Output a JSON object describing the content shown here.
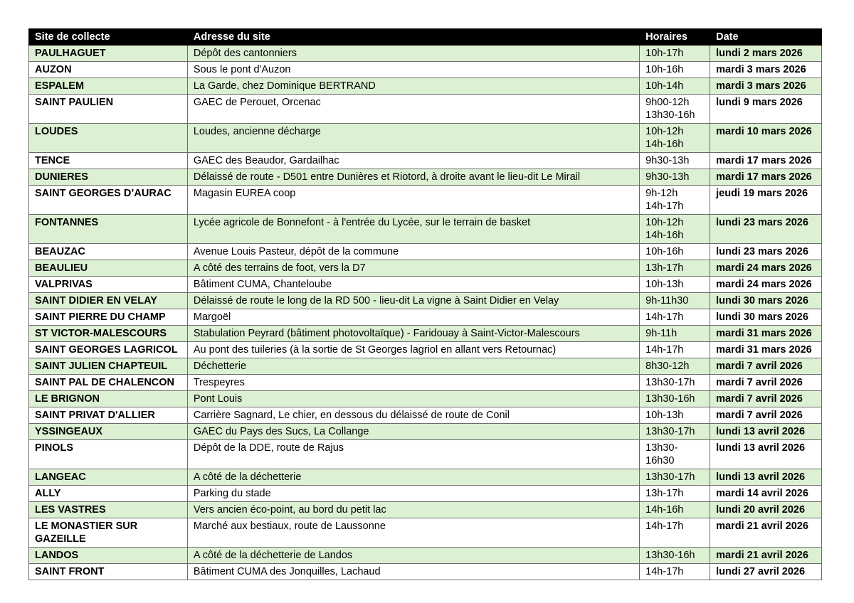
{
  "table": {
    "headers": [
      "Site de collecte",
      "Adresse du site",
      "Horaires",
      "Date"
    ],
    "row_highlight_color": "#dcf1d3",
    "header_color": "#000000",
    "rows": [
      {
        "site": "PAULHAGUET",
        "address": "Dépôt des cantonniers",
        "hours": [
          "10h-17h"
        ],
        "date": "lundi 2 mars 2026"
      },
      {
        "site": "AUZON",
        "address": "Sous le pont d'Auzon",
        "hours": [
          "10h-16h"
        ],
        "date": "mardi 3 mars 2026"
      },
      {
        "site": "ESPALEM",
        "address": "La Garde, chez Dominique BERTRAND",
        "hours": [
          "10h-14h"
        ],
        "date": "mardi 3 mars 2026"
      },
      {
        "site": "SAINT PAULIEN",
        "address": "GAEC de Perouet, Orcenac",
        "hours": [
          "9h00-12h",
          "13h30-16h"
        ],
        "date": "lundi 9 mars 2026"
      },
      {
        "site": "LOUDES",
        "address": "Loudes, ancienne décharge",
        "hours": [
          "10h-12h",
          "14h-16h"
        ],
        "date": "mardi 10 mars 2026"
      },
      {
        "site": "TENCE",
        "address": "GAEC des Beaudor, Gardailhac",
        "hours": [
          "9h30-13h"
        ],
        "date": "mardi 17 mars 2026"
      },
      {
        "site": "DUNIERES",
        "address": "Délaissé de route - D501 entre Dunières et Riotord, à droite avant le lieu-dit Le Mirail",
        "hours": [
          "9h30-13h"
        ],
        "date": "mardi 17 mars 2026"
      },
      {
        "site": "SAINT GEORGES D’AURAC",
        "address": "Magasin EUREA coop",
        "hours": [
          "9h-12h",
          "14h-17h"
        ],
        "date": "jeudi 19 mars 2026"
      },
      {
        "site": "FONTANNES",
        "address": "Lycée agricole de Bonnefont - à l'entrée du Lycée, sur le terrain de basket",
        "hours": [
          "10h-12h",
          "14h-16h"
        ],
        "date": "lundi 23 mars 2026"
      },
      {
        "site": "BEAUZAC",
        "address": "Avenue Louis Pasteur, dépôt de la commune",
        "hours": [
          "10h-16h"
        ],
        "date": "lundi 23 mars 2026"
      },
      {
        "site": "BEAULIEU",
        "address": "A côté des terrains de foot, vers la D7",
        "hours": [
          "13h-17h"
        ],
        "date": "mardi 24 mars 2026"
      },
      {
        "site": "VALPRIVAS",
        "address": "Bâtiment CUMA, Chanteloube",
        "hours": [
          "10h-13h"
        ],
        "date": "mardi 24 mars 2026"
      },
      {
        "site": "SAINT DIDIER EN VELAY",
        "address": "Délaissé de route le long de la RD 500 - lieu-dit La vigne à Saint Didier en Velay",
        "hours": [
          "9h-11h30"
        ],
        "date": "lundi 30 mars 2026"
      },
      {
        "site": "SAINT PIERRE DU CHAMP",
        "address": "Margoël",
        "hours": [
          "14h-17h"
        ],
        "date": "lundi 30 mars 2026"
      },
      {
        "site": "ST VICTOR-MALESCOURS",
        "address": "Stabulation Peyrard (bâtiment photovoltaïque) - Faridouay à Saint-Victor-Malescours",
        "hours": [
          "9h-11h"
        ],
        "date": "mardi 31 mars 2026"
      },
      {
        "site": "SAINT GEORGES LAGRICOL",
        "address": "Au pont des tuileries (à la sortie de St Georges lagriol en allant vers Retournac)",
        "hours": [
          "14h-17h"
        ],
        "date": "mardi 31 mars 2026"
      },
      {
        "site": "SAINT JULIEN CHAPTEUIL",
        "address": "Déchetterie",
        "hours": [
          "8h30-12h"
        ],
        "date": "mardi 7 avril 2026"
      },
      {
        "site": "SAINT PAL DE CHALENCON",
        "address": "Trespeyres",
        "hours": [
          "13h30-17h"
        ],
        "date": "mardi 7 avril 2026"
      },
      {
        "site": "LE BRIGNON",
        "address": "Pont Louis",
        "hours": [
          "13h30-16h"
        ],
        "date": "mardi 7 avril 2026"
      },
      {
        "site": "SAINT PRIVAT D'ALLIER",
        "address": "Carrière Sagnard, Le chier, en dessous du délaissé de route de Conil",
        "hours": [
          "10h-13h"
        ],
        "date": "mardi 7 avril 2026"
      },
      {
        "site": "YSSINGEAUX",
        "address": "GAEC du Pays des Sucs, La Collange",
        "hours": [
          "13h30-17h"
        ],
        "date": "lundi 13 avril 2026"
      },
      {
        "site": "PINOLS",
        "address": "Dépôt de la DDE, route de Rajus",
        "hours": [
          "13h30-",
          "16h30"
        ],
        "date": "lundi 13 avril 2026"
      },
      {
        "site": "LANGEAC",
        "address": "A côté de la déchetterie",
        "hours": [
          "13h30-17h"
        ],
        "date": "lundi 13 avril 2026"
      },
      {
        "site": "ALLY",
        "address": "Parking du stade",
        "hours": [
          "13h-17h"
        ],
        "date": "mardi 14 avril 2026"
      },
      {
        "site": "LES VASTRES",
        "address": "Vers ancien éco-point, au bord du petit lac",
        "hours": [
          "14h-16h"
        ],
        "date": "lundi 20 avril 2026"
      },
      {
        "site": "LE MONASTIER SUR GAZEILLE",
        "address": "Marché aux bestiaux, route de Laussonne",
        "hours": [
          "14h-17h"
        ],
        "date": "mardi 21 avril 2026"
      },
      {
        "site": "LANDOS",
        "address": "A côté de la déchetterie de Landos",
        "hours": [
          "13h30-16h"
        ],
        "date": "mardi 21 avril 2026"
      },
      {
        "site": "SAINT FRONT",
        "address": "Bâtiment CUMA des Jonquilles, Lachaud",
        "hours": [
          "14h-17h"
        ],
        "date": "lundi 27 avril 2026"
      }
    ]
  }
}
